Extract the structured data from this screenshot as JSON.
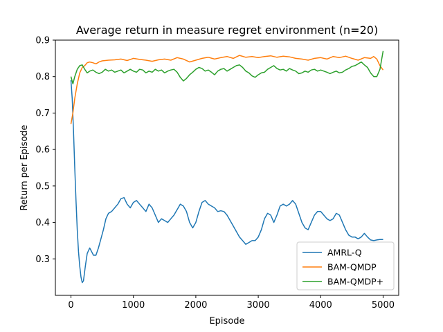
{
  "chart_data": {
    "type": "line",
    "title": "Average return in measure regret environment (n=20)",
    "xlabel": "Episode",
    "ylabel": "Return per Episode",
    "xlim": [
      -250,
      5250
    ],
    "ylim": [
      0.2,
      0.9
    ],
    "xticks": [
      0,
      1000,
      2000,
      3000,
      4000,
      5000
    ],
    "yticks": [
      0.3,
      0.4,
      0.5,
      0.6,
      0.7,
      0.8,
      0.9
    ],
    "grid": false,
    "legend_position": "lower-right",
    "series": [
      {
        "name": "AMRL-Q",
        "color": "#1f77b4",
        "points": [
          [
            0,
            0.79
          ],
          [
            20,
            0.74
          ],
          [
            40,
            0.65
          ],
          [
            60,
            0.55
          ],
          [
            80,
            0.46
          ],
          [
            100,
            0.38
          ],
          [
            120,
            0.32
          ],
          [
            140,
            0.28
          ],
          [
            160,
            0.25
          ],
          [
            180,
            0.235
          ],
          [
            200,
            0.24
          ],
          [
            230,
            0.28
          ],
          [
            260,
            0.315
          ],
          [
            300,
            0.33
          ],
          [
            330,
            0.32
          ],
          [
            360,
            0.31
          ],
          [
            400,
            0.31
          ],
          [
            440,
            0.33
          ],
          [
            480,
            0.355
          ],
          [
            520,
            0.38
          ],
          [
            560,
            0.41
          ],
          [
            600,
            0.425
          ],
          [
            650,
            0.43
          ],
          [
            700,
            0.44
          ],
          [
            750,
            0.45
          ],
          [
            800,
            0.465
          ],
          [
            850,
            0.468
          ],
          [
            900,
            0.45
          ],
          [
            950,
            0.44
          ],
          [
            1000,
            0.455
          ],
          [
            1050,
            0.46
          ],
          [
            1100,
            0.45
          ],
          [
            1150,
            0.44
          ],
          [
            1200,
            0.43
          ],
          [
            1250,
            0.45
          ],
          [
            1300,
            0.44
          ],
          [
            1350,
            0.42
          ],
          [
            1400,
            0.4
          ],
          [
            1450,
            0.41
          ],
          [
            1500,
            0.405
          ],
          [
            1550,
            0.4
          ],
          [
            1600,
            0.41
          ],
          [
            1650,
            0.42
          ],
          [
            1700,
            0.435
          ],
          [
            1750,
            0.45
          ],
          [
            1800,
            0.445
          ],
          [
            1850,
            0.43
          ],
          [
            1900,
            0.4
          ],
          [
            1950,
            0.385
          ],
          [
            2000,
            0.4
          ],
          [
            2050,
            0.43
          ],
          [
            2100,
            0.455
          ],
          [
            2150,
            0.46
          ],
          [
            2200,
            0.45
          ],
          [
            2250,
            0.445
          ],
          [
            2300,
            0.44
          ],
          [
            2350,
            0.43
          ],
          [
            2400,
            0.432
          ],
          [
            2450,
            0.43
          ],
          [
            2500,
            0.42
          ],
          [
            2550,
            0.405
          ],
          [
            2600,
            0.39
          ],
          [
            2650,
            0.375
          ],
          [
            2700,
            0.36
          ],
          [
            2750,
            0.35
          ],
          [
            2800,
            0.34
          ],
          [
            2850,
            0.345
          ],
          [
            2900,
            0.35
          ],
          [
            2950,
            0.35
          ],
          [
            3000,
            0.36
          ],
          [
            3050,
            0.38
          ],
          [
            3100,
            0.41
          ],
          [
            3150,
            0.425
          ],
          [
            3200,
            0.42
          ],
          [
            3250,
            0.4
          ],
          [
            3300,
            0.42
          ],
          [
            3350,
            0.445
          ],
          [
            3400,
            0.45
          ],
          [
            3450,
            0.445
          ],
          [
            3500,
            0.45
          ],
          [
            3550,
            0.46
          ],
          [
            3600,
            0.45
          ],
          [
            3650,
            0.425
          ],
          [
            3700,
            0.4
          ],
          [
            3750,
            0.385
          ],
          [
            3800,
            0.38
          ],
          [
            3850,
            0.4
          ],
          [
            3900,
            0.42
          ],
          [
            3950,
            0.43
          ],
          [
            4000,
            0.43
          ],
          [
            4050,
            0.42
          ],
          [
            4100,
            0.41
          ],
          [
            4150,
            0.405
          ],
          [
            4200,
            0.41
          ],
          [
            4250,
            0.425
          ],
          [
            4300,
            0.42
          ],
          [
            4350,
            0.4
          ],
          [
            4400,
            0.38
          ],
          [
            4450,
            0.365
          ],
          [
            4500,
            0.36
          ],
          [
            4550,
            0.36
          ],
          [
            4600,
            0.355
          ],
          [
            4650,
            0.36
          ],
          [
            4700,
            0.37
          ],
          [
            4750,
            0.36
          ],
          [
            4800,
            0.352
          ],
          [
            4850,
            0.35
          ],
          [
            4900,
            0.352
          ],
          [
            4950,
            0.353
          ],
          [
            5000,
            0.353
          ]
        ]
      },
      {
        "name": "BAM-QMDP",
        "color": "#ff7f0e",
        "points": [
          [
            0,
            0.67
          ],
          [
            30,
            0.7
          ],
          [
            60,
            0.74
          ],
          [
            100,
            0.78
          ],
          [
            140,
            0.81
          ],
          [
            180,
            0.825
          ],
          [
            220,
            0.83
          ],
          [
            260,
            0.838
          ],
          [
            300,
            0.84
          ],
          [
            350,
            0.838
          ],
          [
            400,
            0.835
          ],
          [
            450,
            0.84
          ],
          [
            500,
            0.843
          ],
          [
            600,
            0.845
          ],
          [
            700,
            0.846
          ],
          [
            800,
            0.848
          ],
          [
            900,
            0.844
          ],
          [
            1000,
            0.85
          ],
          [
            1100,
            0.847
          ],
          [
            1200,
            0.845
          ],
          [
            1300,
            0.842
          ],
          [
            1400,
            0.846
          ],
          [
            1500,
            0.848
          ],
          [
            1600,
            0.845
          ],
          [
            1700,
            0.852
          ],
          [
            1800,
            0.848
          ],
          [
            1900,
            0.84
          ],
          [
            2000,
            0.845
          ],
          [
            2100,
            0.85
          ],
          [
            2200,
            0.853
          ],
          [
            2300,
            0.848
          ],
          [
            2400,
            0.852
          ],
          [
            2500,
            0.855
          ],
          [
            2600,
            0.85
          ],
          [
            2700,
            0.858
          ],
          [
            2800,
            0.853
          ],
          [
            2900,
            0.855
          ],
          [
            3000,
            0.852
          ],
          [
            3100,
            0.855
          ],
          [
            3200,
            0.857
          ],
          [
            3300,
            0.853
          ],
          [
            3400,
            0.856
          ],
          [
            3500,
            0.854
          ],
          [
            3600,
            0.85
          ],
          [
            3700,
            0.848
          ],
          [
            3800,
            0.845
          ],
          [
            3900,
            0.85
          ],
          [
            4000,
            0.852
          ],
          [
            4100,
            0.848
          ],
          [
            4200,
            0.855
          ],
          [
            4300,
            0.852
          ],
          [
            4400,
            0.856
          ],
          [
            4500,
            0.85
          ],
          [
            4600,
            0.845
          ],
          [
            4700,
            0.852
          ],
          [
            4800,
            0.85
          ],
          [
            4850,
            0.855
          ],
          [
            4900,
            0.848
          ],
          [
            4950,
            0.83
          ],
          [
            5000,
            0.818
          ]
        ]
      },
      {
        "name": "BAM-QMDP+",
        "color": "#2ca02c",
        "points": [
          [
            0,
            0.8
          ],
          [
            30,
            0.78
          ],
          [
            60,
            0.8
          ],
          [
            100,
            0.82
          ],
          [
            140,
            0.83
          ],
          [
            180,
            0.832
          ],
          [
            220,
            0.82
          ],
          [
            260,
            0.81
          ],
          [
            300,
            0.815
          ],
          [
            350,
            0.818
          ],
          [
            400,
            0.812
          ],
          [
            450,
            0.808
          ],
          [
            500,
            0.812
          ],
          [
            550,
            0.82
          ],
          [
            600,
            0.815
          ],
          [
            650,
            0.818
          ],
          [
            700,
            0.812
          ],
          [
            750,
            0.815
          ],
          [
            800,
            0.818
          ],
          [
            850,
            0.81
          ],
          [
            900,
            0.815
          ],
          [
            950,
            0.82
          ],
          [
            1000,
            0.815
          ],
          [
            1050,
            0.812
          ],
          [
            1100,
            0.82
          ],
          [
            1150,
            0.818
          ],
          [
            1200,
            0.81
          ],
          [
            1250,
            0.815
          ],
          [
            1300,
            0.812
          ],
          [
            1350,
            0.82
          ],
          [
            1400,
            0.815
          ],
          [
            1450,
            0.818
          ],
          [
            1500,
            0.81
          ],
          [
            1550,
            0.815
          ],
          [
            1600,
            0.818
          ],
          [
            1650,
            0.82
          ],
          [
            1700,
            0.812
          ],
          [
            1750,
            0.798
          ],
          [
            1800,
            0.788
          ],
          [
            1850,
            0.795
          ],
          [
            1900,
            0.805
          ],
          [
            1950,
            0.812
          ],
          [
            2000,
            0.82
          ],
          [
            2050,
            0.825
          ],
          [
            2100,
            0.822
          ],
          [
            2150,
            0.815
          ],
          [
            2200,
            0.818
          ],
          [
            2250,
            0.812
          ],
          [
            2300,
            0.805
          ],
          [
            2350,
            0.815
          ],
          [
            2400,
            0.82
          ],
          [
            2450,
            0.822
          ],
          [
            2500,
            0.815
          ],
          [
            2550,
            0.82
          ],
          [
            2600,
            0.825
          ],
          [
            2650,
            0.83
          ],
          [
            2700,
            0.832
          ],
          [
            2750,
            0.825
          ],
          [
            2800,
            0.815
          ],
          [
            2850,
            0.81
          ],
          [
            2900,
            0.802
          ],
          [
            2950,
            0.798
          ],
          [
            3000,
            0.805
          ],
          [
            3050,
            0.81
          ],
          [
            3100,
            0.812
          ],
          [
            3150,
            0.82
          ],
          [
            3200,
            0.825
          ],
          [
            3250,
            0.83
          ],
          [
            3300,
            0.822
          ],
          [
            3350,
            0.818
          ],
          [
            3400,
            0.82
          ],
          [
            3450,
            0.815
          ],
          [
            3500,
            0.822
          ],
          [
            3550,
            0.818
          ],
          [
            3600,
            0.815
          ],
          [
            3650,
            0.808
          ],
          [
            3700,
            0.81
          ],
          [
            3750,
            0.815
          ],
          [
            3800,
            0.812
          ],
          [
            3850,
            0.818
          ],
          [
            3900,
            0.82
          ],
          [
            3950,
            0.815
          ],
          [
            4000,
            0.818
          ],
          [
            4050,
            0.815
          ],
          [
            4100,
            0.812
          ],
          [
            4150,
            0.808
          ],
          [
            4200,
            0.812
          ],
          [
            4250,
            0.815
          ],
          [
            4300,
            0.81
          ],
          [
            4350,
            0.812
          ],
          [
            4400,
            0.818
          ],
          [
            4450,
            0.822
          ],
          [
            4500,
            0.828
          ],
          [
            4550,
            0.83
          ],
          [
            4600,
            0.835
          ],
          [
            4650,
            0.84
          ],
          [
            4700,
            0.832
          ],
          [
            4750,
            0.825
          ],
          [
            4800,
            0.81
          ],
          [
            4850,
            0.8
          ],
          [
            4900,
            0.8
          ],
          [
            4950,
            0.82
          ],
          [
            5000,
            0.87
          ]
        ]
      }
    ]
  }
}
